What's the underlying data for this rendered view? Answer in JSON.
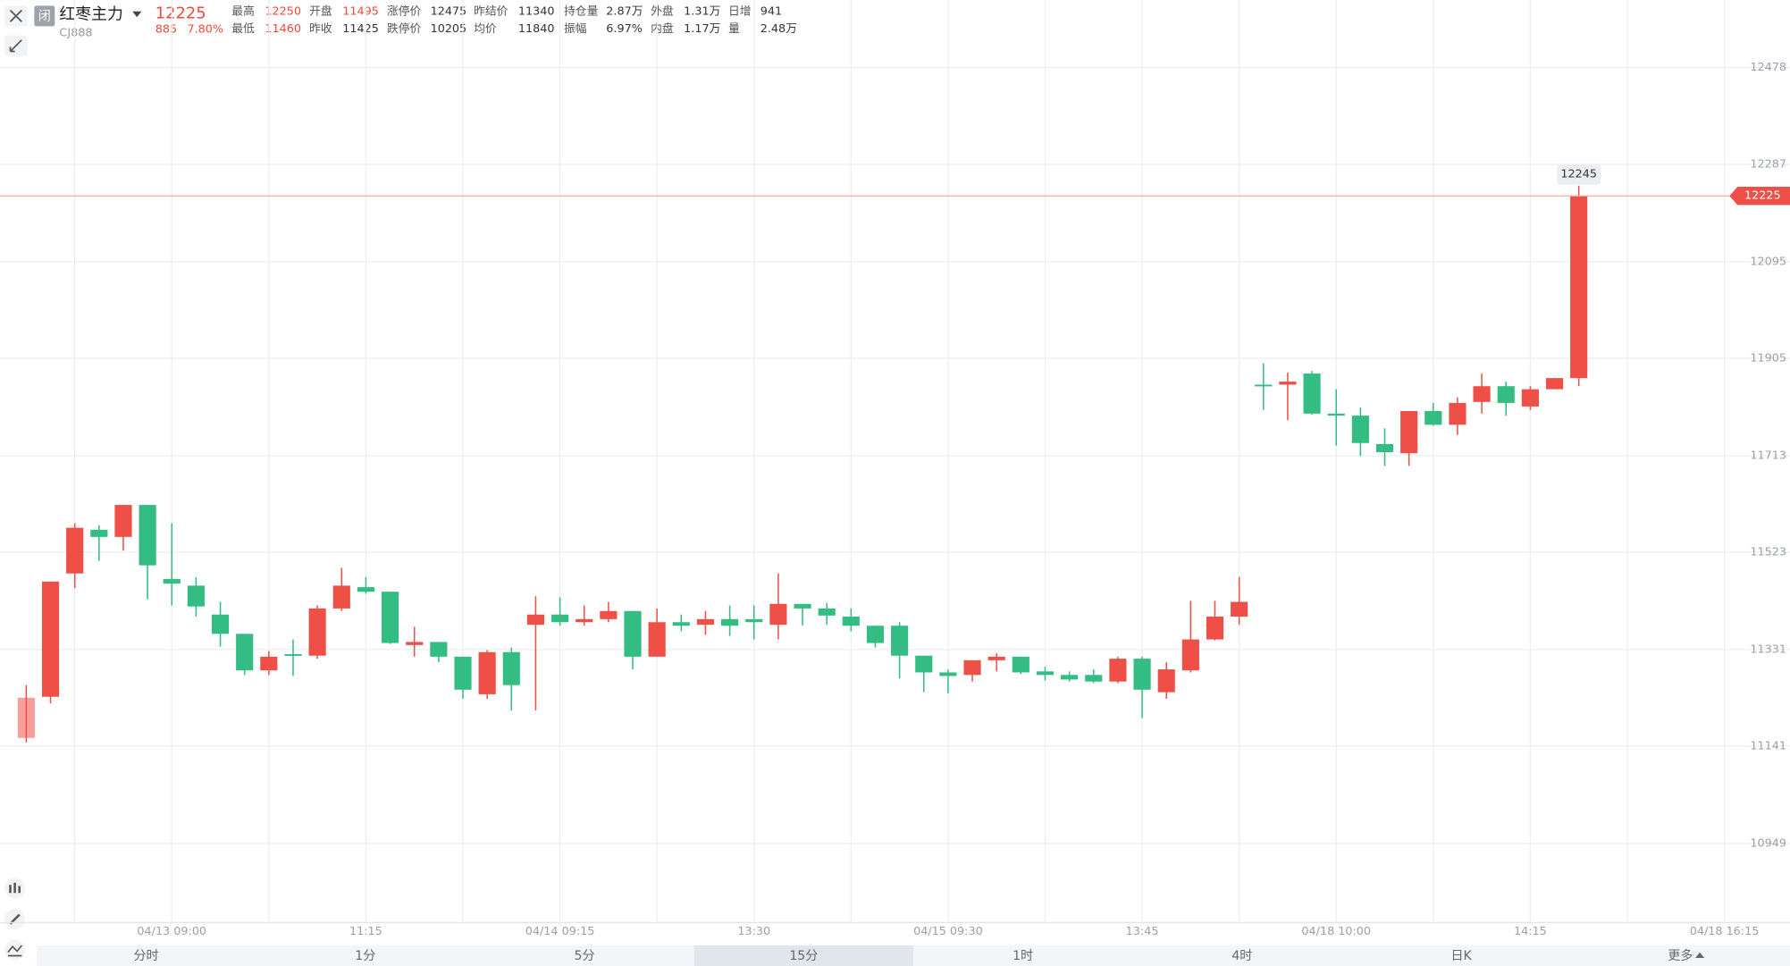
{
  "header": {
    "badge": "闭",
    "name": "红枣主力",
    "code": "CJ888",
    "price": "12225",
    "change": "885",
    "change_pct": "7.80%",
    "stats": [
      [
        {
          "label": "最高",
          "value": "12250",
          "color": "#f04a3a"
        },
        {
          "label": "开盘",
          "value": "11495",
          "color": "#f04a3a"
        },
        {
          "label": "涨停价",
          "value": "12475"
        },
        {
          "label": "昨结价",
          "value": "11340"
        },
        {
          "label": "持仓量",
          "value": "2.87万"
        },
        {
          "label": "外盘",
          "value": "1.31万"
        },
        {
          "label": "日增",
          "value": "941"
        }
      ],
      [
        {
          "label": "最低",
          "value": "11460",
          "color": "#f04a3a"
        },
        {
          "label": "昨收",
          "value": "11425"
        },
        {
          "label": "跌停价",
          "value": "10205"
        },
        {
          "label": "均价",
          "value": "11840"
        },
        {
          "label": "振幅",
          "value": "6.97%"
        },
        {
          "label": "内盘",
          "value": "1.17万"
        },
        {
          "label": "量",
          "value": "2.48万"
        }
      ]
    ]
  },
  "tabs": {
    "items": [
      "分时",
      "1分",
      "5分",
      "15分",
      "1时",
      "4时",
      "日K",
      "更多"
    ],
    "selected": 3
  },
  "chart_data": {
    "type": "candlestick",
    "up_color": "#ee5048",
    "down_color": "#33bd83",
    "categories": [
      null,
      null,
      null,
      null,
      null,
      null,
      "04/13 09:00",
      null,
      null,
      null,
      null,
      null,
      null,
      null,
      "11:15",
      null,
      null,
      null,
      null,
      null,
      null,
      null,
      "04/14 09:15",
      null,
      null,
      null,
      null,
      null,
      null,
      null,
      "13:30",
      null,
      null,
      null,
      null,
      null,
      null,
      null,
      "04/15 09:30",
      null,
      null,
      null,
      null,
      null,
      null,
      null,
      "13:45",
      null,
      null,
      null,
      null,
      null,
      null,
      null,
      "04/18 10:00",
      null,
      null,
      null,
      null,
      null,
      null,
      null,
      "14:15",
      null,
      null,
      null,
      null,
      null,
      null,
      null,
      "04/18 16:15"
    ],
    "open": [
      11157,
      11238,
      11481,
      11567,
      11553,
      11616,
      11470,
      11457,
      11400,
      11362,
      11290,
      11322,
      11319,
      11412,
      11454,
      11445,
      11340,
      11346,
      11317,
      11243,
      11326,
      11380,
      11400,
      11385,
      11391,
      11407,
      11317,
      11385,
      11380,
      11391,
      11391,
      11380,
      11421,
      11412,
      11396,
      11378,
      11378,
      11319,
      11286,
      11281,
      11310,
      11317,
      11288,
      11281,
      11281,
      11268,
      11313,
      11247,
      11290,
      11351,
      11396,
      11853,
      11853,
      11875,
      11796,
      11792,
      11736,
      11718,
      11801,
      11774,
      11819,
      11850,
      11810,
      11844,
      11866,
      null,
      null,
      null,
      null,
      null,
      null
    ],
    "high": [
      11261,
      11465,
      11580,
      11576,
      11616,
      11616,
      11580,
      11474,
      11425,
      11362,
      11328,
      11351,
      11418,
      11492,
      11474,
      11445,
      11376,
      11346,
      11317,
      11330,
      11335,
      11436,
      11434,
      11418,
      11425,
      11407,
      11412,
      11400,
      11407,
      11418,
      11418,
      11481,
      11421,
      11423,
      11412,
      11378,
      11385,
      11319,
      11292,
      11310,
      11324,
      11317,
      11297,
      11288,
      11292,
      11317,
      11317,
      11306,
      11427,
      11427,
      11474,
      11895,
      11877,
      11880,
      11844,
      11808,
      11767,
      11801,
      11817,
      11828,
      11875,
      11859,
      11850,
      11866,
      12245,
      null,
      null,
      null,
      null,
      null,
      null
    ],
    "low": [
      11148,
      11225,
      11452,
      11506,
      11526,
      11430,
      11418,
      11396,
      11337,
      11281,
      11281,
      11279,
      11313,
      11407,
      11441,
      11342,
      11317,
      11306,
      11234,
      11234,
      11211,
      11211,
      11378,
      11378,
      11385,
      11292,
      11317,
      11367,
      11360,
      11358,
      11351,
      11351,
      11378,
      11380,
      11367,
      11335,
      11274,
      11247,
      11245,
      11268,
      11288,
      11283,
      11270,
      11268,
      11265,
      11265,
      11196,
      11234,
      11286,
      11349,
      11380,
      11803,
      11783,
      11794,
      11733,
      11713,
      11693,
      11693,
      11772,
      11754,
      11796,
      11792,
      11803,
      11844,
      11850,
      null,
      null,
      null,
      null,
      null,
      null
    ],
    "close": [
      11236,
      11465,
      11571,
      11553,
      11616,
      11497,
      11461,
      11416,
      11362,
      11290,
      11317,
      11319,
      11412,
      11457,
      11445,
      11344,
      11346,
      11317,
      11252,
      11326,
      11261,
      11400,
      11385,
      11391,
      11407,
      11317,
      11385,
      11378,
      11391,
      11378,
      11385,
      11421,
      11412,
      11398,
      11378,
      11344,
      11319,
      11286,
      11279,
      11310,
      11317,
      11286,
      11281,
      11272,
      11268,
      11313,
      11252,
      11292,
      11351,
      11396,
      11425,
      11850,
      11859,
      11796,
      11792,
      11738,
      11720,
      11801,
      11774,
      11817,
      11850,
      11817,
      11844,
      11866,
      12225,
      null,
      null,
      null,
      null,
      null,
      null
    ],
    "ylim": [
      10793,
      12521
    ],
    "yticks": [
      12478,
      12287,
      12095,
      11905,
      11713,
      11523,
      11331,
      11141,
      10949
    ],
    "grid": true
  }
}
